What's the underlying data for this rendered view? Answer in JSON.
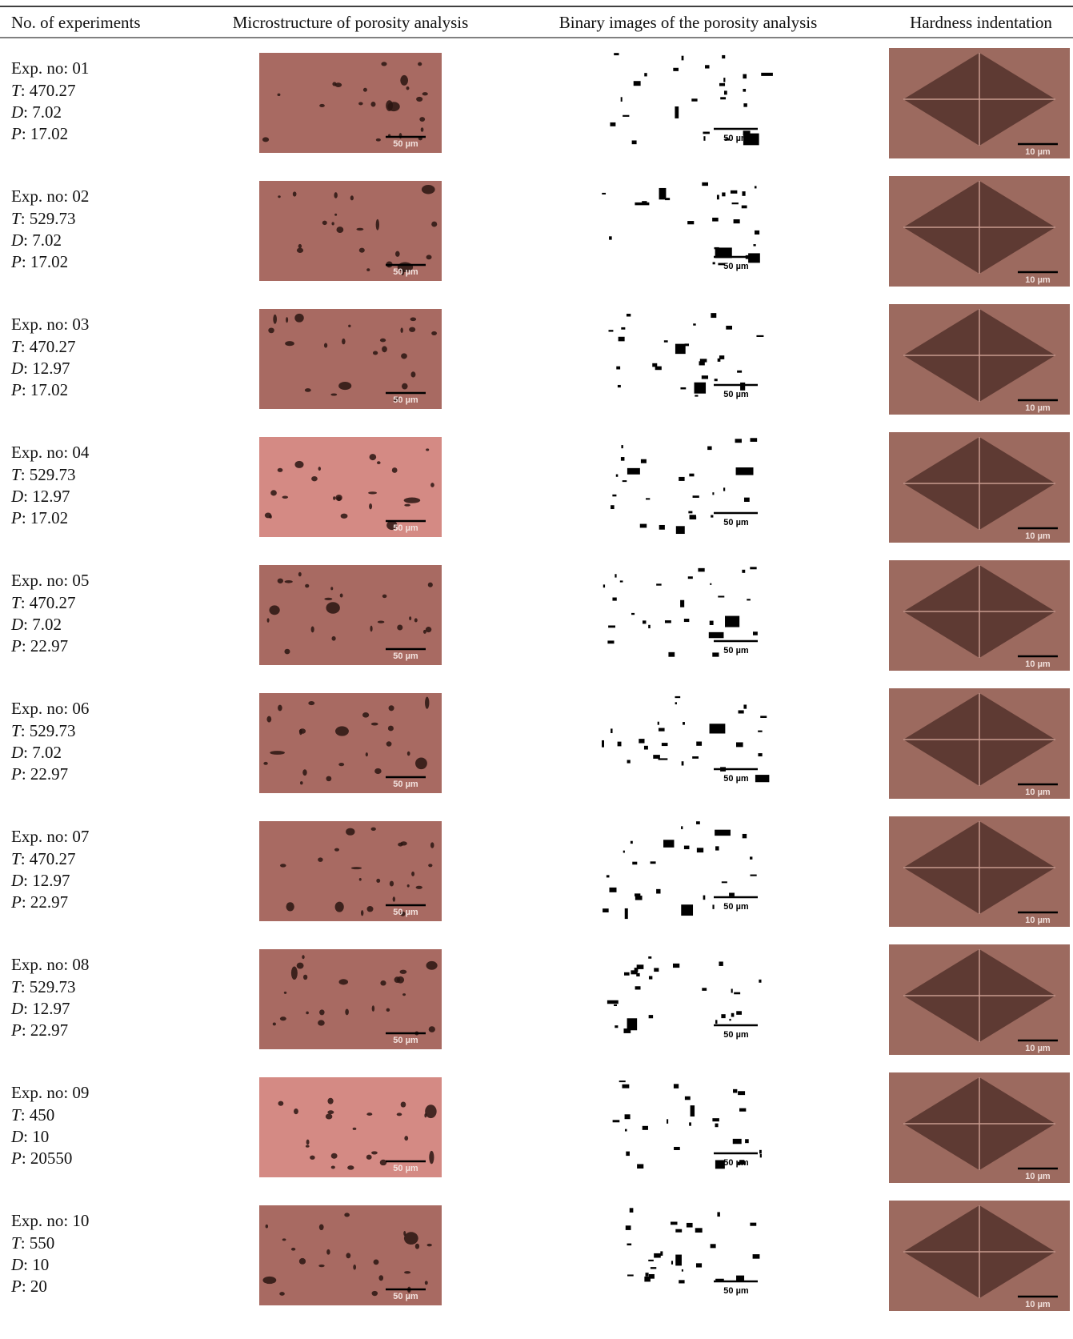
{
  "header": [
    "No. of experiments",
    "Microstructure of porosity analysis",
    "Binary images of the porosity analysis",
    "Hardness indentation"
  ],
  "separator": ": ",
  "param_symbols": [
    "T",
    "D",
    "P"
  ],
  "scale_labels": {
    "microstructure": "50 µm",
    "binary": "50 µm",
    "hardness": "10 µm"
  },
  "rows": [
    {
      "experiment": "Exp. no: 01",
      "params": [
        "470.27",
        "7.02",
        "17.02"
      ]
    },
    {
      "experiment": "Exp. no: 02",
      "params": [
        "529.73",
        "7.02",
        "17.02"
      ]
    },
    {
      "experiment": "Exp. no: 03",
      "params": [
        "470.27",
        "12.97",
        "17.02"
      ]
    },
    {
      "experiment": "Exp. no: 04",
      "params": [
        "529.73",
        "12.97",
        "17.02"
      ]
    },
    {
      "experiment": "Exp. no: 05",
      "params": [
        "470.27",
        "7.02",
        "22.97"
      ]
    },
    {
      "experiment": "Exp. no: 06",
      "params": [
        "529.73",
        "7.02",
        "22.97"
      ]
    },
    {
      "experiment": "Exp. no: 07",
      "params": [
        "470.27",
        "12.97",
        "22.97"
      ]
    },
    {
      "experiment": "Exp. no: 08",
      "params": [
        "529.73",
        "12.97",
        "22.97"
      ]
    },
    {
      "experiment": "Exp. no: 09",
      "params": [
        "450",
        "10",
        "20550"
      ]
    },
    {
      "experiment": "Exp. no: 10",
      "params": [
        "550",
        "10",
        "20"
      ]
    }
  ]
}
